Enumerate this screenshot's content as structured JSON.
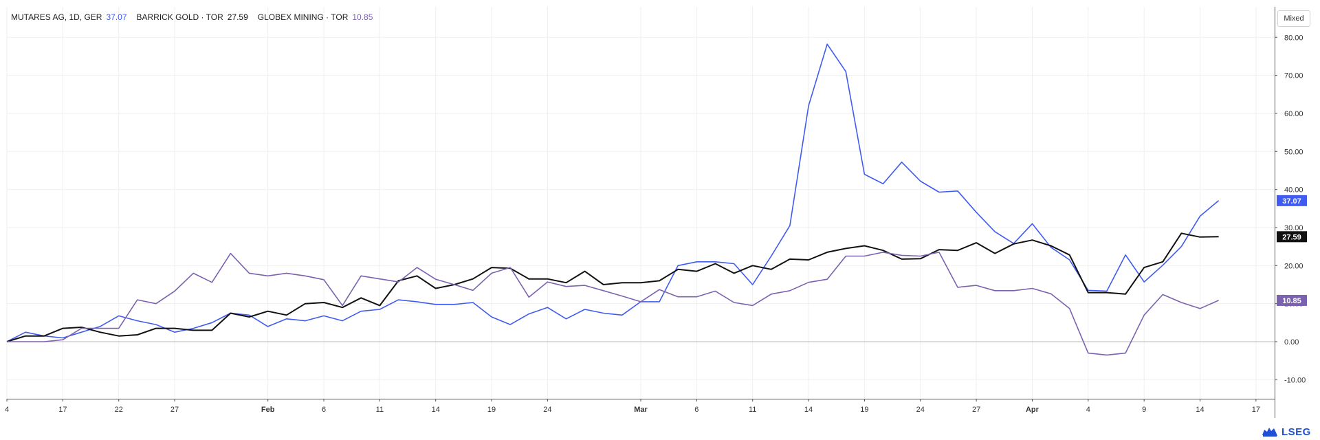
{
  "legend": [
    {
      "label": "MUTARES AG, 1D, GER",
      "value": "37.07",
      "color": "#3f5bf0"
    },
    {
      "label": "BARRICK GOLD · TOR",
      "value": "27.59",
      "color": "#111111"
    },
    {
      "label": "GLOBEX MINING · TOR",
      "value": "10.85",
      "color": "#7b62ae"
    }
  ],
  "mode_button": "Mixed",
  "logo": "LSEG",
  "chart_data": {
    "type": "line",
    "ylim": [
      -15,
      88
    ],
    "y_ticks": [
      -10,
      0,
      10,
      20,
      30,
      40,
      50,
      60,
      70,
      80
    ],
    "y_tick_labels": [
      "-10.00",
      "0.00",
      "10.00",
      "20.00",
      "30.00",
      "40.00",
      "50.00",
      "60.00",
      "70.00",
      "80.00"
    ],
    "x_range": [
      0,
      68
    ],
    "x_ticks": [
      {
        "x": 0,
        "label": "4"
      },
      {
        "x": 3,
        "label": "17"
      },
      {
        "x": 6,
        "label": "22"
      },
      {
        "x": 9,
        "label": "27"
      },
      {
        "x": 14,
        "label": "Feb"
      },
      {
        "x": 17,
        "label": "6"
      },
      {
        "x": 20,
        "label": "11"
      },
      {
        "x": 23,
        "label": "14"
      },
      {
        "x": 26,
        "label": "19"
      },
      {
        "x": 29,
        "label": "24"
      },
      {
        "x": 34,
        "label": "Mar"
      },
      {
        "x": 37,
        "label": "6"
      },
      {
        "x": 40,
        "label": "11"
      },
      {
        "x": 43,
        "label": "14"
      },
      {
        "x": 46,
        "label": "19"
      },
      {
        "x": 49,
        "label": "24"
      },
      {
        "x": 52,
        "label": "27"
      },
      {
        "x": 55,
        "label": "Apr"
      },
      {
        "x": 58,
        "label": "4"
      },
      {
        "x": 61,
        "label": "9"
      },
      {
        "x": 64,
        "label": "14"
      },
      {
        "x": 67,
        "label": "17"
      }
    ],
    "grid": true,
    "series": [
      {
        "name": "MUTARES AG",
        "color": "#3f5bf0",
        "last_label": "37.07",
        "values": [
          0,
          2.5,
          1.5,
          1,
          2.5,
          4,
          6.8,
          5.5,
          4.5,
          2.5,
          3.5,
          5,
          7.5,
          7,
          4,
          6,
          5.5,
          6.8,
          5.5,
          8,
          8.5,
          11,
          10.5,
          9.8,
          9.8,
          10.3,
          6.5,
          4.5,
          7.3,
          9,
          6,
          8.5,
          7.5,
          7,
          10.5,
          10.5,
          20,
          21,
          21,
          20.5,
          15,
          22.5,
          30.5,
          62,
          78.2,
          71,
          44,
          41.5,
          47.2,
          42.2,
          39.3,
          39.6,
          34,
          28.9,
          25.8,
          31,
          24.8,
          21.5,
          13.5,
          13.3,
          22.8,
          15.7,
          20.1,
          25,
          33,
          37.07
        ]
      },
      {
        "name": "BARRICK GOLD",
        "color": "#111111",
        "last_label": "27.59",
        "values": [
          0,
          1.5,
          1.5,
          3.5,
          3.8,
          2.5,
          1.5,
          1.8,
          3.5,
          3.5,
          3,
          3,
          7.5,
          6.5,
          8,
          7,
          10,
          10.3,
          9,
          11.5,
          9.5,
          16,
          17.3,
          14,
          15,
          16.5,
          19.5,
          19.3,
          16.5,
          16.5,
          15.5,
          18.5,
          15,
          15.5,
          15.5,
          16,
          19,
          18.5,
          20.5,
          18,
          20,
          19,
          21.7,
          21.5,
          23.5,
          24.5,
          25.2,
          24,
          21.7,
          21.8,
          24.2,
          24,
          26,
          23.2,
          25.7,
          26.7,
          25.2,
          22.8,
          12.9,
          12.9,
          12.5,
          19.5,
          21,
          28.5,
          27.5,
          27.59
        ]
      },
      {
        "name": "GLOBEX MINING",
        "color": "#7b62ae",
        "last_label": "10.85",
        "values": [
          0,
          0,
          0,
          0.5,
          3.5,
          3.5,
          3.5,
          11,
          10,
          13.3,
          18,
          15.6,
          23.2,
          18,
          17.3,
          18,
          17.3,
          16.3,
          9.5,
          17.3,
          16.5,
          15.7,
          19.5,
          16.4,
          15,
          13.5,
          18,
          19.5,
          11.7,
          15.7,
          14.5,
          14.8,
          13.4,
          12,
          10.5,
          13.7,
          11.8,
          11.8,
          13.3,
          10.3,
          9.5,
          12.5,
          13.4,
          15.6,
          16.4,
          22.5,
          22.5,
          23.5,
          22.7,
          22.5,
          23.5,
          14.3,
          14.8,
          13.4,
          13.4,
          14,
          12.6,
          8.7,
          -3,
          -3.5,
          -3,
          7,
          12.4,
          10.3,
          8.7,
          10.85
        ]
      }
    ]
  }
}
